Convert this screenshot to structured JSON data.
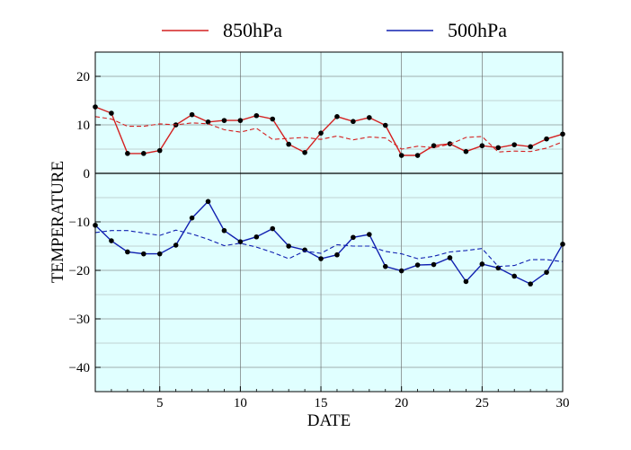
{
  "chart_data": {
    "type": "line",
    "xlabel": "DATE",
    "ylabel": "TEMPERATURE",
    "xlim": [
      1,
      30
    ],
    "ylim": [
      -45,
      25
    ],
    "xticks": [
      5,
      10,
      15,
      20,
      25,
      30
    ],
    "yticks": [
      -40,
      -30,
      -20,
      -10,
      0,
      10,
      20
    ],
    "grid": true,
    "legend_position": "top",
    "background_color": "#e0ffff",
    "x": [
      1,
      2,
      3,
      4,
      5,
      6,
      7,
      8,
      9,
      10,
      11,
      12,
      13,
      14,
      15,
      16,
      17,
      18,
      19,
      20,
      21,
      22,
      23,
      24,
      25,
      26,
      27,
      28,
      29,
      30
    ],
    "series": [
      {
        "name": "850hPa",
        "color": "#d42020",
        "style": "solid",
        "markers": true,
        "values": [
          13.7,
          12.4,
          4.1,
          4.1,
          4.7,
          10.0,
          12.1,
          10.6,
          10.9,
          10.9,
          11.9,
          11.2,
          6.0,
          4.3,
          8.3,
          11.7,
          10.7,
          11.5,
          9.9,
          3.7,
          3.7,
          5.7,
          6.1,
          4.5,
          5.7,
          5.3,
          5.9,
          5.5,
          7.1,
          8.1
        ]
      },
      {
        "name": "",
        "color": "#d42020",
        "style": "dashed",
        "markers": false,
        "values": [
          11.7,
          11.2,
          9.7,
          9.7,
          10.2,
          10.0,
          10.4,
          10.2,
          9.0,
          8.5,
          9.3,
          7.0,
          7.2,
          7.4,
          7.0,
          7.7,
          6.9,
          7.5,
          7.3,
          5.0,
          5.6,
          5.3,
          6.0,
          7.4,
          7.6,
          4.4,
          4.6,
          4.5,
          5.2,
          6.5
        ]
      },
      {
        "name": "500hPa",
        "color": "#1020b0",
        "style": "solid",
        "markers": true,
        "values": [
          -10.7,
          -13.9,
          -16.2,
          -16.6,
          -16.6,
          -14.8,
          -9.2,
          -5.8,
          -11.8,
          -14.1,
          -13.1,
          -11.4,
          -15.0,
          -15.8,
          -17.6,
          -16.8,
          -13.2,
          -12.6,
          -19.2,
          -20.1,
          -18.9,
          -18.8,
          -17.4,
          -22.3,
          -18.7,
          -19.5,
          -21.2,
          -22.8,
          -20.4,
          -14.6
        ]
      },
      {
        "name": "",
        "color": "#1020b0",
        "style": "dashed",
        "markers": false,
        "values": [
          -12.2,
          -11.8,
          -11.8,
          -12.3,
          -12.8,
          -11.7,
          -12.5,
          -13.6,
          -14.9,
          -14.4,
          -15.2,
          -16.3,
          -17.6,
          -16.0,
          -16.5,
          -14.7,
          -15.0,
          -15.0,
          -16.1,
          -16.6,
          -17.6,
          -17.1,
          -16.2,
          -15.9,
          -15.5,
          -19.2,
          -19.0,
          -17.8,
          -17.8,
          -18.2
        ]
      }
    ]
  }
}
